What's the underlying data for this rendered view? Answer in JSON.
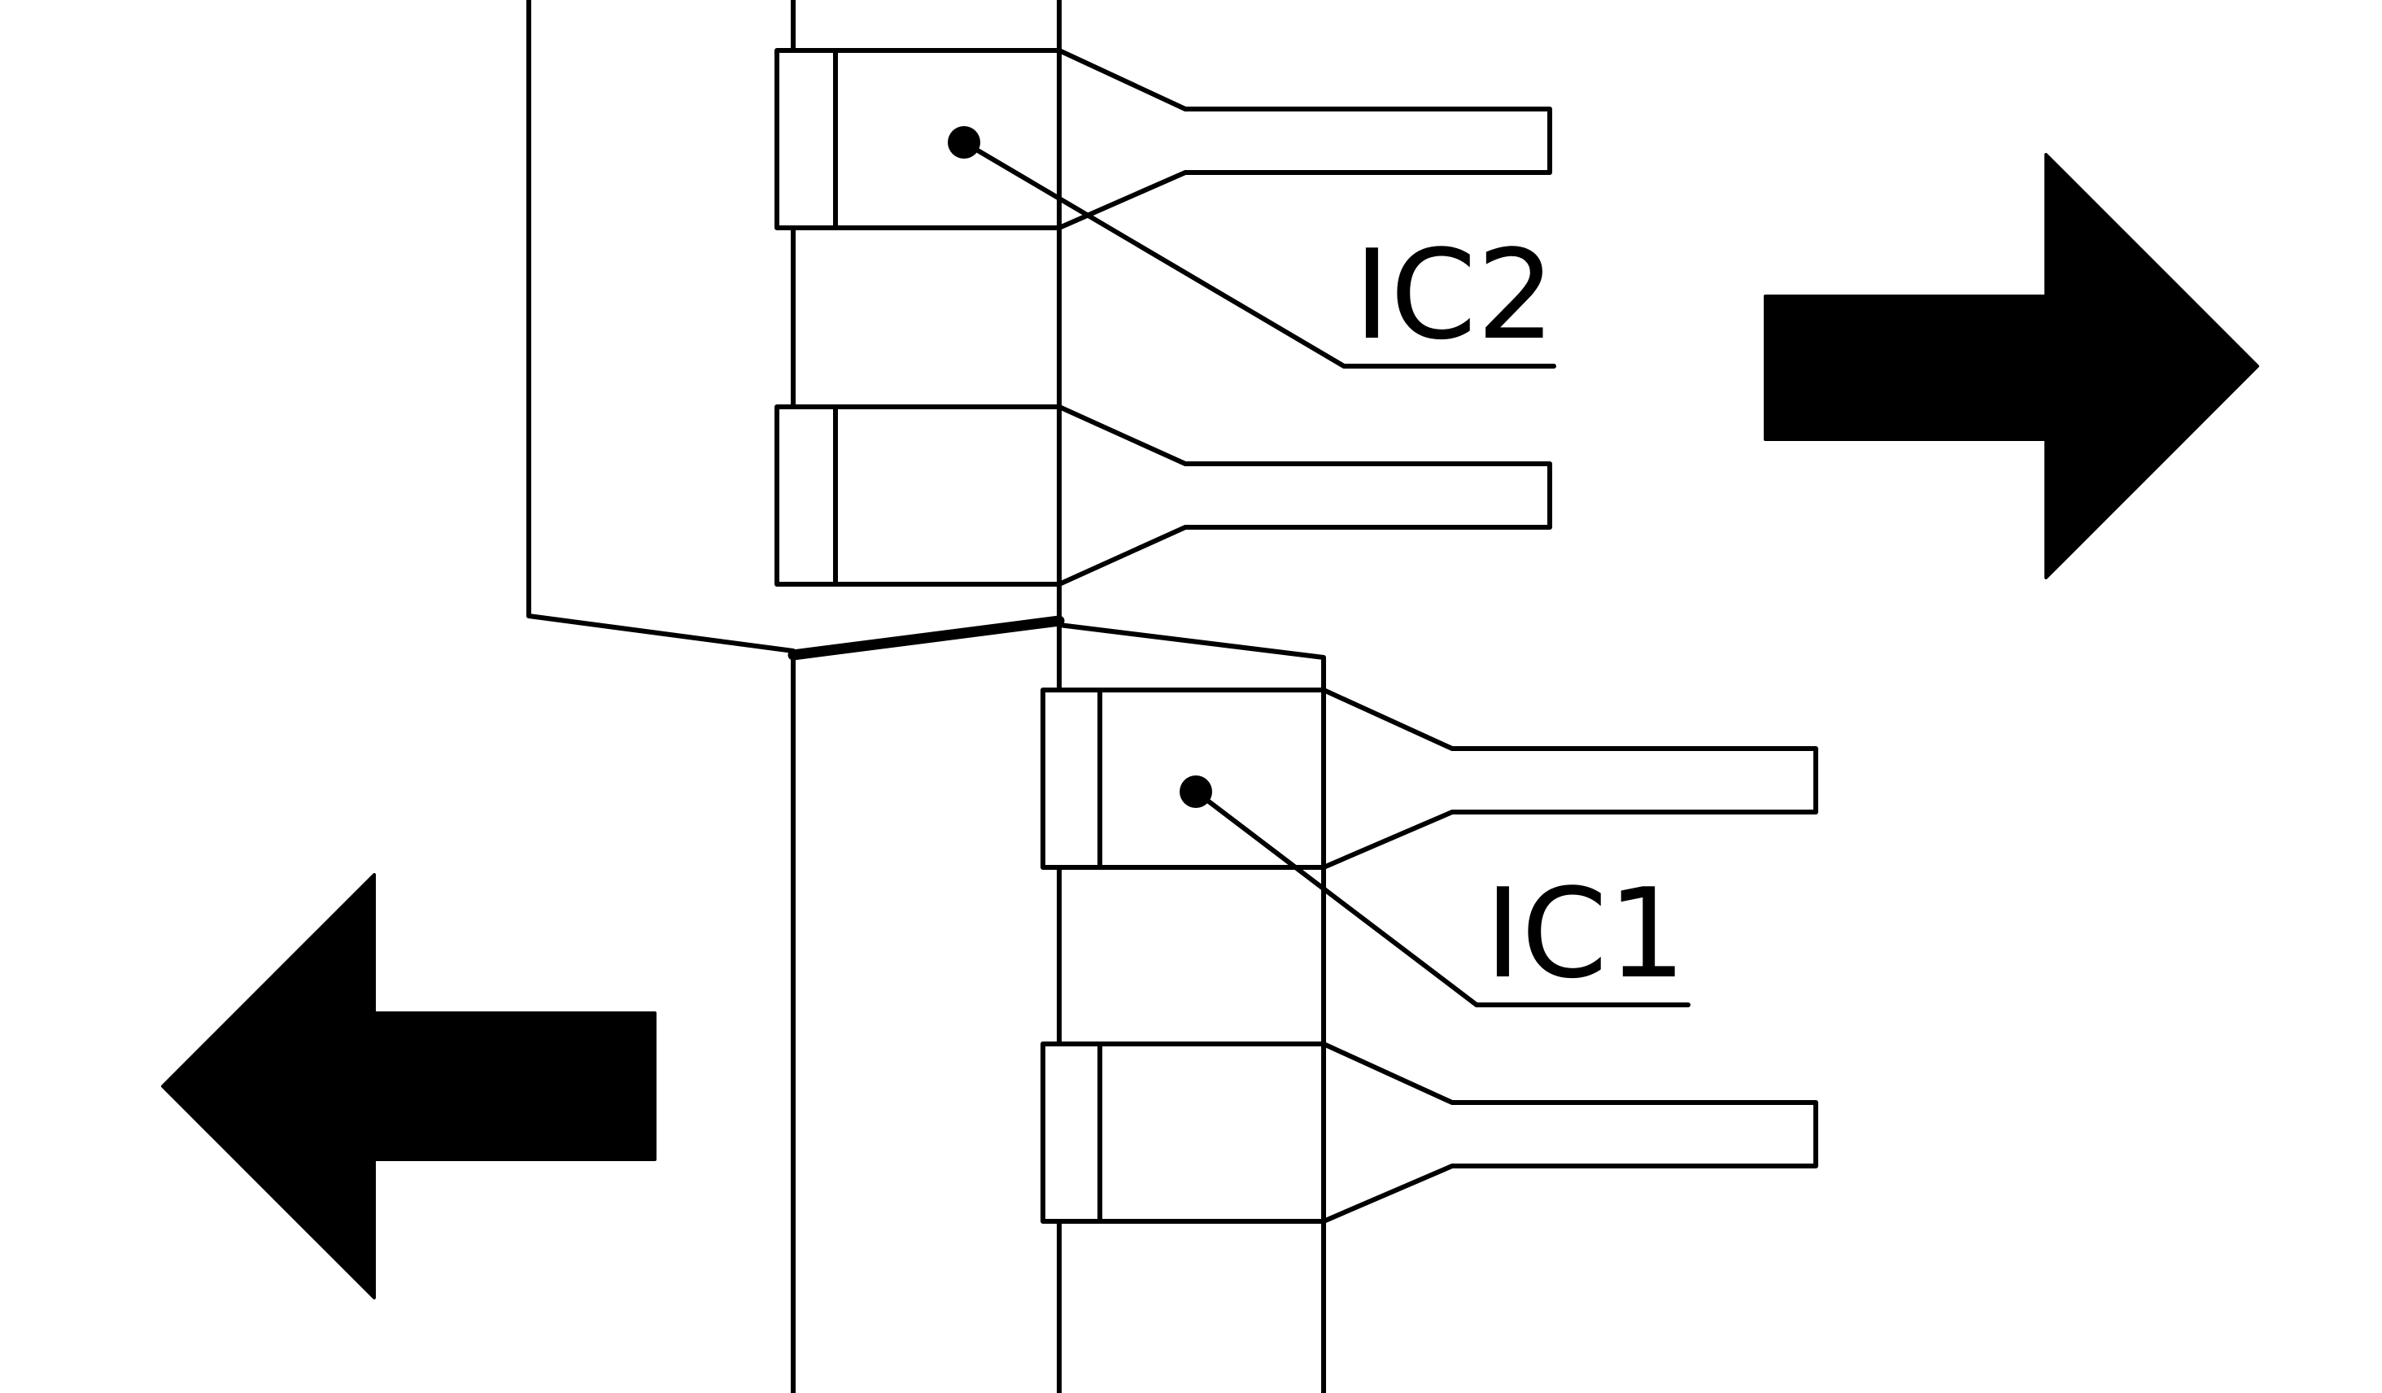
{
  "labels": {
    "ic2": "IC2",
    "ic1": "IC1"
  },
  "arrows": {
    "right": "arrow-right",
    "left": "arrow-left"
  },
  "colors": {
    "ink": "#000000",
    "background": "#ffffff"
  }
}
